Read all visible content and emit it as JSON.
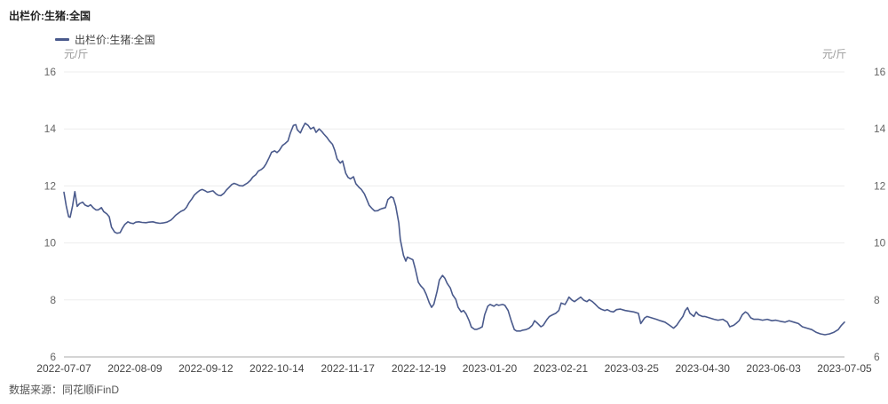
{
  "title": "出栏价:生猪:全国",
  "unit_left": "元/斤",
  "unit_right": "元/斤",
  "source": "数据来源：同花顺iFinD",
  "colors": {
    "line": "#4a5a8c",
    "grid": "#ededed",
    "axis": "#a8a8a8",
    "tick_text": "#666666",
    "date_text": "#444444"
  },
  "chart_data": {
    "type": "line",
    "title": "出栏价:生猪:全国",
    "ylabel": "元/斤",
    "ylim": [
      6,
      16
    ],
    "grid": "horizontal",
    "legend_position": "top-left",
    "y_ticks": [
      6,
      8,
      10,
      12,
      14,
      16
    ],
    "x_ticks": [
      "2022-07-07",
      "2022-08-09",
      "2022-09-12",
      "2022-10-14",
      "2022-11-17",
      "2022-12-19",
      "2023-01-20",
      "2023-02-21",
      "2023-03-25",
      "2023-04-30",
      "2023-06-03",
      "2023-07-05"
    ],
    "series": [
      {
        "name": "出栏价:生猪:全国",
        "points": [
          [
            0,
            11.78
          ],
          [
            0.003,
            11.3
          ],
          [
            0.006,
            10.92
          ],
          [
            0.008,
            10.9
          ],
          [
            0.011,
            11.3
          ],
          [
            0.014,
            11.8
          ],
          [
            0.017,
            11.28
          ],
          [
            0.02,
            11.38
          ],
          [
            0.024,
            11.43
          ],
          [
            0.027,
            11.33
          ],
          [
            0.031,
            11.28
          ],
          [
            0.034,
            11.34
          ],
          [
            0.038,
            11.22
          ],
          [
            0.041,
            11.16
          ],
          [
            0.044,
            11.16
          ],
          [
            0.048,
            11.24
          ],
          [
            0.051,
            11.1
          ],
          [
            0.055,
            11.02
          ],
          [
            0.058,
            10.92
          ],
          [
            0.061,
            10.55
          ],
          [
            0.065,
            10.38
          ],
          [
            0.068,
            10.34
          ],
          [
            0.072,
            10.36
          ],
          [
            0.075,
            10.52
          ],
          [
            0.078,
            10.65
          ],
          [
            0.082,
            10.74
          ],
          [
            0.085,
            10.7
          ],
          [
            0.089,
            10.68
          ],
          [
            0.092,
            10.73
          ],
          [
            0.096,
            10.74
          ],
          [
            0.1,
            10.72
          ],
          [
            0.105,
            10.71
          ],
          [
            0.109,
            10.73
          ],
          [
            0.114,
            10.74
          ],
          [
            0.118,
            10.71
          ],
          [
            0.123,
            10.69
          ],
          [
            0.127,
            10.7
          ],
          [
            0.132,
            10.73
          ],
          [
            0.137,
            10.8
          ],
          [
            0.14,
            10.88
          ],
          [
            0.143,
            10.97
          ],
          [
            0.147,
            11.05
          ],
          [
            0.15,
            11.11
          ],
          [
            0.154,
            11.16
          ],
          [
            0.157,
            11.25
          ],
          [
            0.16,
            11.4
          ],
          [
            0.164,
            11.55
          ],
          [
            0.167,
            11.68
          ],
          [
            0.171,
            11.78
          ],
          [
            0.174,
            11.84
          ],
          [
            0.177,
            11.88
          ],
          [
            0.181,
            11.83
          ],
          [
            0.184,
            11.78
          ],
          [
            0.188,
            11.81
          ],
          [
            0.191,
            11.83
          ],
          [
            0.195,
            11.72
          ],
          [
            0.198,
            11.67
          ],
          [
            0.201,
            11.66
          ],
          [
            0.205,
            11.74
          ],
          [
            0.208,
            11.85
          ],
          [
            0.212,
            11.96
          ],
          [
            0.215,
            12.05
          ],
          [
            0.218,
            12.09
          ],
          [
            0.222,
            12.05
          ],
          [
            0.225,
            12.01
          ],
          [
            0.229,
            12
          ],
          [
            0.232,
            12.05
          ],
          [
            0.235,
            12.1
          ],
          [
            0.239,
            12.2
          ],
          [
            0.242,
            12.31
          ],
          [
            0.246,
            12.4
          ],
          [
            0.249,
            12.52
          ],
          [
            0.253,
            12.58
          ],
          [
            0.256,
            12.65
          ],
          [
            0.259,
            12.78
          ],
          [
            0.263,
            13
          ],
          [
            0.266,
            13.18
          ],
          [
            0.27,
            13.23
          ],
          [
            0.273,
            13.17
          ],
          [
            0.276,
            13.25
          ],
          [
            0.28,
            13.42
          ],
          [
            0.283,
            13.48
          ],
          [
            0.287,
            13.58
          ],
          [
            0.29,
            13.85
          ],
          [
            0.294,
            14.12
          ],
          [
            0.297,
            14.15
          ],
          [
            0.299,
            13.97
          ],
          [
            0.303,
            13.86
          ],
          [
            0.306,
            14.05
          ],
          [
            0.309,
            14.2
          ],
          [
            0.313,
            14.12
          ],
          [
            0.316,
            14
          ],
          [
            0.32,
            14.06
          ],
          [
            0.323,
            13.88
          ],
          [
            0.327,
            14
          ],
          [
            0.33,
            13.92
          ],
          [
            0.333,
            13.82
          ],
          [
            0.337,
            13.7
          ],
          [
            0.34,
            13.58
          ],
          [
            0.344,
            13.46
          ],
          [
            0.347,
            13.25
          ],
          [
            0.35,
            12.95
          ],
          [
            0.354,
            12.8
          ],
          [
            0.357,
            12.88
          ],
          [
            0.361,
            12.45
          ],
          [
            0.364,
            12.3
          ],
          [
            0.367,
            12.25
          ],
          [
            0.371,
            12.32
          ],
          [
            0.374,
            12.08
          ],
          [
            0.378,
            11.95
          ],
          [
            0.381,
            11.88
          ],
          [
            0.385,
            11.72
          ],
          [
            0.388,
            11.52
          ],
          [
            0.391,
            11.32
          ],
          [
            0.395,
            11.2
          ],
          [
            0.398,
            11.12
          ],
          [
            0.402,
            11.13
          ],
          [
            0.405,
            11.18
          ],
          [
            0.408,
            11.21
          ],
          [
            0.412,
            11.24
          ],
          [
            0.415,
            11.52
          ],
          [
            0.419,
            11.62
          ],
          [
            0.422,
            11.58
          ],
          [
            0.425,
            11.3
          ],
          [
            0.429,
            10.7
          ],
          [
            0.431,
            10.12
          ],
          [
            0.435,
            9.56
          ],
          [
            0.438,
            9.36
          ],
          [
            0.44,
            9.5
          ],
          [
            0.444,
            9.45
          ],
          [
            0.447,
            9.41
          ],
          [
            0.45,
            9.1
          ],
          [
            0.454,
            8.62
          ],
          [
            0.457,
            8.5
          ],
          [
            0.461,
            8.38
          ],
          [
            0.464,
            8.2
          ],
          [
            0.468,
            7.9
          ],
          [
            0.471,
            7.74
          ],
          [
            0.474,
            7.85
          ],
          [
            0.478,
            8.3
          ],
          [
            0.481,
            8.7
          ],
          [
            0.485,
            8.86
          ],
          [
            0.488,
            8.76
          ],
          [
            0.491,
            8.58
          ],
          [
            0.495,
            8.42
          ],
          [
            0.498,
            8.18
          ],
          [
            0.502,
            8.02
          ],
          [
            0.505,
            7.74
          ],
          [
            0.509,
            7.58
          ],
          [
            0.512,
            7.63
          ],
          [
            0.515,
            7.52
          ],
          [
            0.519,
            7.28
          ],
          [
            0.522,
            7.05
          ],
          [
            0.526,
            6.97
          ],
          [
            0.529,
            6.97
          ],
          [
            0.532,
            7
          ],
          [
            0.536,
            7.06
          ],
          [
            0.539,
            7.48
          ],
          [
            0.543,
            7.78
          ],
          [
            0.546,
            7.84
          ],
          [
            0.551,
            7.78
          ],
          [
            0.554,
            7.84
          ],
          [
            0.557,
            7.81
          ],
          [
            0.562,
            7.84
          ],
          [
            0.565,
            7.81
          ],
          [
            0.569,
            7.63
          ],
          [
            0.573,
            7.27
          ],
          [
            0.577,
            6.96
          ],
          [
            0.58,
            6.91
          ],
          [
            0.585,
            6.91
          ],
          [
            0.588,
            6.94
          ],
          [
            0.592,
            6.96
          ],
          [
            0.596,
            7.01
          ],
          [
            0.6,
            7.11
          ],
          [
            0.603,
            7.27
          ],
          [
            0.607,
            7.17
          ],
          [
            0.611,
            7.06
          ],
          [
            0.614,
            7.11
          ],
          [
            0.619,
            7.32
          ],
          [
            0.622,
            7.42
          ],
          [
            0.626,
            7.48
          ],
          [
            0.63,
            7.53
          ],
          [
            0.634,
            7.63
          ],
          [
            0.637,
            7.89
          ],
          [
            0.642,
            7.84
          ],
          [
            0.645,
            7.99
          ],
          [
            0.647,
            8.1
          ],
          [
            0.651,
            7.99
          ],
          [
            0.654,
            7.94
          ],
          [
            0.659,
            8.04
          ],
          [
            0.662,
            8.1
          ],
          [
            0.666,
            7.99
          ],
          [
            0.67,
            7.94
          ],
          [
            0.673,
            8.01
          ],
          [
            0.677,
            7.94
          ],
          [
            0.681,
            7.84
          ],
          [
            0.685,
            7.73
          ],
          [
            0.688,
            7.68
          ],
          [
            0.693,
            7.63
          ],
          [
            0.696,
            7.66
          ],
          [
            0.7,
            7.6
          ],
          [
            0.704,
            7.58
          ],
          [
            0.708,
            7.66
          ],
          [
            0.713,
            7.68
          ],
          [
            0.719,
            7.63
          ],
          [
            0.725,
            7.6
          ],
          [
            0.73,
            7.58
          ],
          [
            0.736,
            7.53
          ],
          [
            0.739,
            7.17
          ],
          [
            0.744,
            7.37
          ],
          [
            0.747,
            7.42
          ],
          [
            0.753,
            7.37
          ],
          [
            0.759,
            7.32
          ],
          [
            0.764,
            7.27
          ],
          [
            0.77,
            7.22
          ],
          [
            0.776,
            7.11
          ],
          [
            0.781,
            7.01
          ],
          [
            0.785,
            7.11
          ],
          [
            0.789,
            7.27
          ],
          [
            0.793,
            7.42
          ],
          [
            0.796,
            7.63
          ],
          [
            0.799,
            7.73
          ],
          [
            0.802,
            7.53
          ],
          [
            0.807,
            7.42
          ],
          [
            0.81,
            7.58
          ],
          [
            0.813,
            7.48
          ],
          [
            0.818,
            7.42
          ],
          [
            0.821,
            7.42
          ],
          [
            0.827,
            7.37
          ],
          [
            0.833,
            7.32
          ],
          [
            0.838,
            7.29
          ],
          [
            0.844,
            7.32
          ],
          [
            0.85,
            7.22
          ],
          [
            0.853,
            7.06
          ],
          [
            0.858,
            7.11
          ],
          [
            0.861,
            7.17
          ],
          [
            0.865,
            7.27
          ],
          [
            0.869,
            7.48
          ],
          [
            0.873,
            7.58
          ],
          [
            0.876,
            7.53
          ],
          [
            0.88,
            7.37
          ],
          [
            0.884,
            7.32
          ],
          [
            0.89,
            7.32
          ],
          [
            0.895,
            7.29
          ],
          [
            0.901,
            7.32
          ],
          [
            0.907,
            7.27
          ],
          [
            0.912,
            7.29
          ],
          [
            0.918,
            7.25
          ],
          [
            0.924,
            7.22
          ],
          [
            0.929,
            7.27
          ],
          [
            0.935,
            7.22
          ],
          [
            0.941,
            7.17
          ],
          [
            0.946,
            7.06
          ],
          [
            0.952,
            7.01
          ],
          [
            0.958,
            6.96
          ],
          [
            0.964,
            6.86
          ],
          [
            0.969,
            6.81
          ],
          [
            0.975,
            6.78
          ],
          [
            0.981,
            6.81
          ],
          [
            0.986,
            6.86
          ],
          [
            0.992,
            6.96
          ],
          [
            0.996,
            7.11
          ],
          [
            1,
            7.22
          ]
        ]
      }
    ]
  }
}
